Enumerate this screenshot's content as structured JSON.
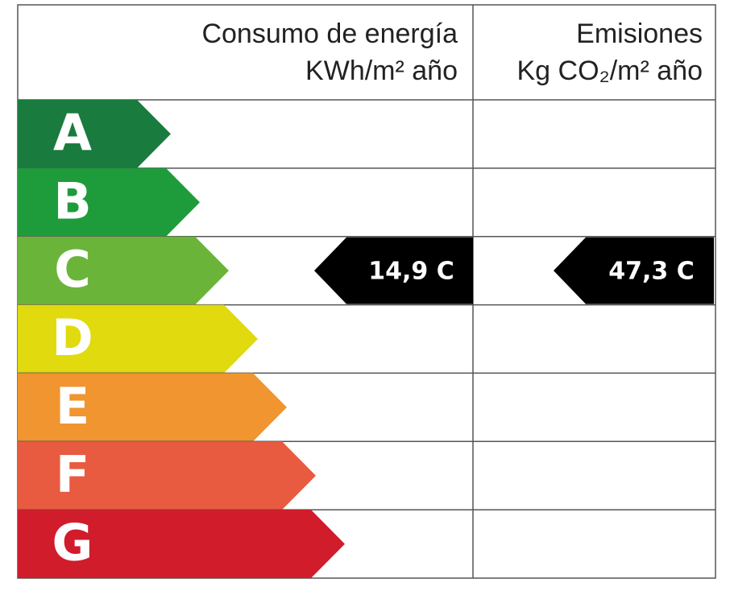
{
  "header": {
    "consumption": {
      "title": "Consumo de energía",
      "unit": "KWh/m² año"
    },
    "emissions": {
      "title": "Emisiones",
      "unit": "Kg CO₂/m² año"
    }
  },
  "ratings": [
    {
      "letter": "A",
      "color": "#1a7b3f"
    },
    {
      "letter": "B",
      "color": "#1e9c3b"
    },
    {
      "letter": "C",
      "color": "#6bb43a"
    },
    {
      "letter": "D",
      "color": "#e0da0e"
    },
    {
      "letter": "E",
      "color": "#f0952f"
    },
    {
      "letter": "F",
      "color": "#e85b40"
    },
    {
      "letter": "G",
      "color": "#d01c2b"
    }
  ],
  "consumption": {
    "label": "14,9 C"
  },
  "emissions": {
    "label": "47,3 C"
  }
}
